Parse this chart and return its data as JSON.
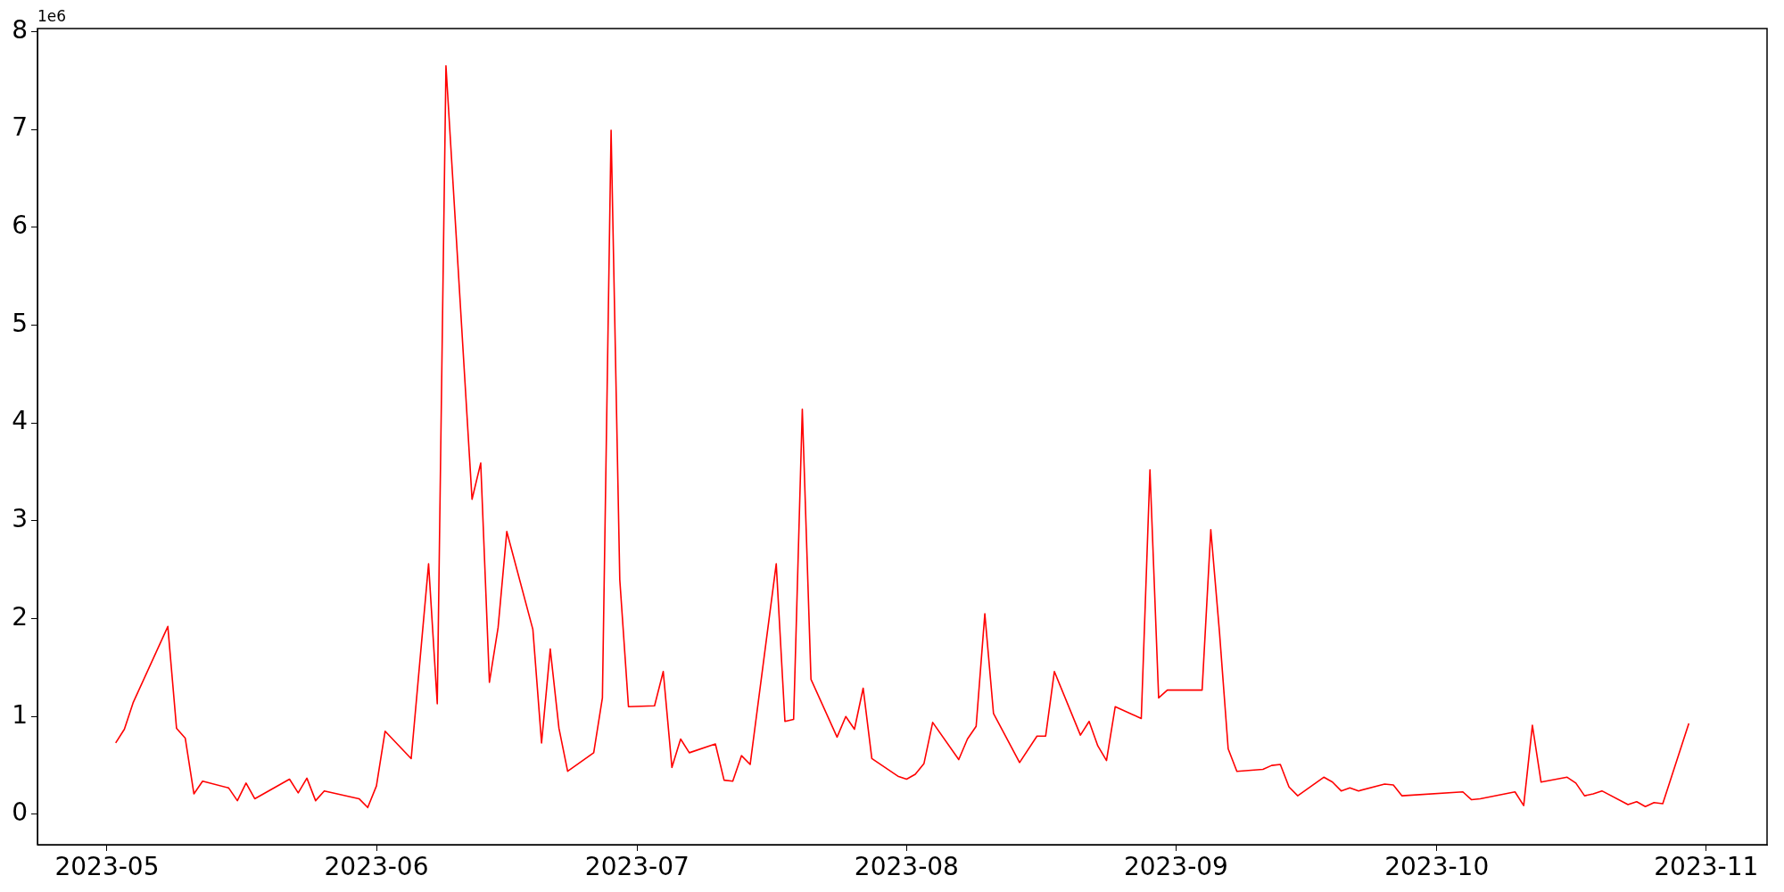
{
  "chart_data": {
    "type": "line",
    "x": [
      "2023-05-02",
      "2023-05-03",
      "2023-05-04",
      "2023-05-08",
      "2023-05-09",
      "2023-05-10",
      "2023-05-11",
      "2023-05-12",
      "2023-05-15",
      "2023-05-16",
      "2023-05-17",
      "2023-05-18",
      "2023-05-19",
      "2023-05-22",
      "2023-05-23",
      "2023-05-24",
      "2023-05-25",
      "2023-05-26",
      "2023-05-30",
      "2023-05-31",
      "2023-06-01",
      "2023-06-02",
      "2023-06-05",
      "2023-06-07",
      "2023-06-08",
      "2023-06-09",
      "2023-06-12",
      "2023-06-13",
      "2023-06-14",
      "2023-06-15",
      "2023-06-16",
      "2023-06-19",
      "2023-06-20",
      "2023-06-21",
      "2023-06-22",
      "2023-06-23",
      "2023-06-26",
      "2023-06-27",
      "2023-06-28",
      "2023-06-29",
      "2023-06-30",
      "2023-07-03",
      "2023-07-04",
      "2023-07-05",
      "2023-07-06",
      "2023-07-07",
      "2023-07-10",
      "2023-07-11",
      "2023-07-12",
      "2023-07-13",
      "2023-07-14",
      "2023-07-17",
      "2023-07-18",
      "2023-07-19",
      "2023-07-20",
      "2023-07-21",
      "2023-07-24",
      "2023-07-25",
      "2023-07-26",
      "2023-07-27",
      "2023-07-28",
      "2023-07-31",
      "2023-08-01",
      "2023-08-02",
      "2023-08-03",
      "2023-08-04",
      "2023-08-07",
      "2023-08-08",
      "2023-08-09",
      "2023-08-10",
      "2023-08-11",
      "2023-08-14",
      "2023-08-16",
      "2023-08-17",
      "2023-08-18",
      "2023-08-21",
      "2023-08-22",
      "2023-08-23",
      "2023-08-24",
      "2023-08-25",
      "2023-08-28",
      "2023-08-29",
      "2023-08-30",
      "2023-08-31",
      "2023-09-01",
      "2023-09-04",
      "2023-09-05",
      "2023-09-06",
      "2023-09-07",
      "2023-09-08",
      "2023-09-11",
      "2023-09-12",
      "2023-09-13",
      "2023-09-14",
      "2023-09-15",
      "2023-09-18",
      "2023-09-19",
      "2023-09-20",
      "2023-09-21",
      "2023-09-22",
      "2023-09-25",
      "2023-09-26",
      "2023-09-27",
      "2023-10-04",
      "2023-10-05",
      "2023-10-06",
      "2023-10-10",
      "2023-10-11",
      "2023-10-12",
      "2023-10-13",
      "2023-10-16",
      "2023-10-17",
      "2023-10-18",
      "2023-10-19",
      "2023-10-20",
      "2023-10-23",
      "2023-10-24",
      "2023-10-25",
      "2023-10-26",
      "2023-10-27",
      "2023-10-30"
    ],
    "series": [
      {
        "color": "#ff0000",
        "values": [
          0.73,
          0.87,
          1.14,
          1.92,
          0.88,
          0.78,
          0.21,
          0.34,
          0.27,
          0.14,
          0.32,
          0.16,
          0.21,
          0.36,
          0.22,
          0.37,
          0.14,
          0.24,
          0.16,
          0.07,
          0.29,
          0.85,
          0.57,
          2.56,
          1.13,
          7.65,
          3.22,
          3.59,
          1.35,
          1.91,
          2.89,
          1.89,
          0.73,
          1.69,
          0.88,
          0.44,
          0.63,
          1.19,
          6.99,
          2.4,
          1.1,
          1.11,
          1.46,
          0.48,
          0.77,
          0.63,
          0.72,
          0.35,
          0.34,
          0.6,
          0.51,
          2.56,
          0.95,
          0.97,
          4.14,
          1.38,
          0.79,
          1.0,
          0.87,
          1.29,
          0.57,
          0.39,
          0.36,
          0.41,
          0.52,
          0.94,
          0.56,
          0.77,
          0.9,
          2.05,
          1.03,
          0.53,
          0.8,
          0.8,
          1.46,
          0.81,
          0.95,
          0.7,
          0.55,
          1.1,
          0.98,
          3.52,
          1.19,
          1.27,
          1.27,
          1.27,
          2.91,
          1.86,
          0.67,
          0.44,
          0.46,
          0.5,
          0.51,
          0.28,
          0.19,
          0.38,
          0.33,
          0.24,
          0.27,
          0.24,
          0.31,
          0.3,
          0.19,
          0.23,
          0.15,
          0.16,
          0.23,
          0.09,
          0.91,
          0.33,
          0.38,
          0.32,
          0.19,
          0.21,
          0.24,
          0.1,
          0.13,
          0.08,
          0.12,
          0.11,
          0.93
        ]
      }
    ],
    "xlim": [
      "2023-04-23",
      "2023-11-08"
    ],
    "xticks": [
      "2023-05",
      "2023-06",
      "2023-07",
      "2023-08",
      "2023-09",
      "2023-10",
      "2023-11"
    ],
    "ylim": [
      -0.31,
      8.03
    ],
    "yticks": [
      0,
      1,
      2,
      3,
      4,
      5,
      6,
      7,
      8
    ],
    "annotations": [
      "1e6"
    ]
  }
}
